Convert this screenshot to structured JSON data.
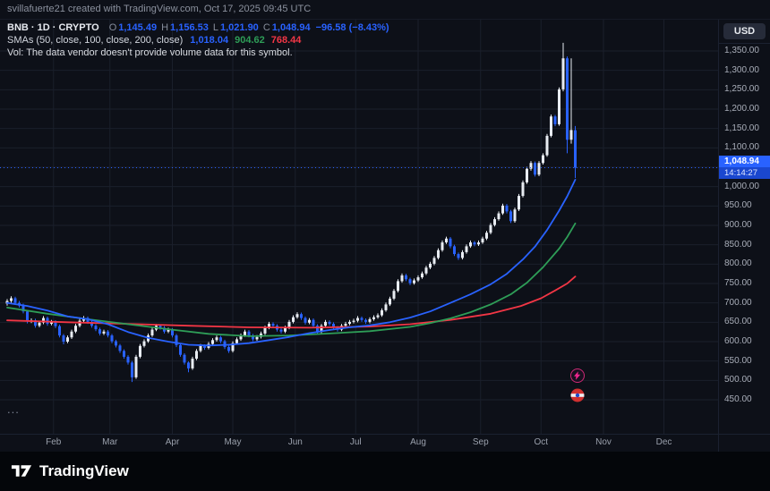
{
  "top_bar": {
    "attribution": "svillafuerte21 created with TradingView.com, Oct 17, 2025 09:45 UTC"
  },
  "toolbar": {
    "currency_button": "USD"
  },
  "legend": {
    "title": "BNB · 1D · CRYPTO",
    "ohlc": {
      "o_label": "O",
      "o": "1,145.49",
      "h_label": "H",
      "h": "1,156.53",
      "l_label": "L",
      "l": "1,021.90",
      "c_label": "C",
      "c": "1,048.94",
      "change": "−96.58 (−8.43%)"
    },
    "sma_title": "SMAs (50, close, 100, close, 200, close)",
    "sma50": "1,018.04",
    "sma100": "904.62",
    "sma200": "768.44",
    "vol_message": "Vol: The data vendor doesn't provide volume data for this symbol.",
    "pane_more": "..."
  },
  "price_scale": {
    "labels": [
      "1,350.00",
      "1,300.00",
      "1,250.00",
      "1,200.00",
      "1,150.00",
      "1,100.00",
      "1,050.00",
      "1,000.00",
      "950.00",
      "900.00",
      "850.00",
      "800.00",
      "750.00",
      "700.00",
      "650.00",
      "600.00",
      "550.00",
      "500.00",
      "450.00"
    ],
    "last_price": "1,048.94",
    "countdown": "14:14:27"
  },
  "time_scale": {
    "months": [
      {
        "label": "Feb",
        "day": 23
      },
      {
        "label": "Mar",
        "day": 51
      },
      {
        "label": "Apr",
        "day": 82
      },
      {
        "label": "May",
        "day": 112
      },
      {
        "label": "Jun",
        "day": 143
      },
      {
        "label": "Jul",
        "day": 173
      },
      {
        "label": "Aug",
        "day": 204
      },
      {
        "label": "Sep",
        "day": 235
      },
      {
        "label": "Oct",
        "day": 265
      },
      {
        "label": "Nov",
        "day": 296
      },
      {
        "label": "Dec",
        "day": 326
      }
    ]
  },
  "footer": {
    "brand": "TradingView"
  },
  "colors": {
    "accent": "#2962ff",
    "up": "#e8ecf2",
    "down": "#2962ff",
    "grid": "#1a1f2b",
    "badge": "#2962ff"
  },
  "chart_data": {
    "type": "candlestick",
    "symbol": "BNB",
    "interval": "1D",
    "market": "CRYPTO",
    "currency": "USD",
    "ylim": [
      450,
      1350
    ],
    "grid_step": 50,
    "legend_position": "top-left",
    "last": {
      "open": 1145.49,
      "high": 1156.53,
      "low": 1021.9,
      "close": 1048.94,
      "change": -96.58,
      "change_pct": -8.43
    },
    "candles": [
      [
        0,
        698,
        710,
        693,
        705
      ],
      [
        2,
        705,
        717,
        700,
        712
      ],
      [
        4,
        712,
        716,
        695,
        700
      ],
      [
        6,
        700,
        705,
        688,
        693
      ],
      [
        8,
        693,
        698,
        673,
        678
      ],
      [
        10,
        678,
        682,
        647,
        652
      ],
      [
        12,
        652,
        660,
        648,
        655
      ],
      [
        14,
        655,
        659,
        636,
        641
      ],
      [
        16,
        641,
        654,
        637,
        649
      ],
      [
        18,
        649,
        666,
        645,
        661
      ],
      [
        20,
        661,
        665,
        641,
        646
      ],
      [
        22,
        646,
        656,
        642,
        651
      ],
      [
        24,
        651,
        655,
        635,
        640
      ],
      [
        26,
        640,
        644,
        611,
        616
      ],
      [
        28,
        616,
        620,
        593,
        600
      ],
      [
        30,
        600,
        616,
        596,
        611
      ],
      [
        32,
        611,
        631,
        607,
        626
      ],
      [
        34,
        626,
        646,
        622,
        641
      ],
      [
        36,
        641,
        659,
        637,
        654
      ],
      [
        38,
        654,
        666,
        650,
        661
      ],
      [
        40,
        661,
        665,
        646,
        651
      ],
      [
        42,
        651,
        655,
        636,
        641
      ],
      [
        44,
        641,
        645,
        627,
        632
      ],
      [
        46,
        632,
        636,
        616,
        621
      ],
      [
        48,
        621,
        631,
        617,
        626
      ],
      [
        50,
        626,
        630,
        611,
        616
      ],
      [
        52,
        616,
        620,
        596,
        601
      ],
      [
        54,
        601,
        605,
        585,
        590
      ],
      [
        56,
        590,
        594,
        571,
        576
      ],
      [
        58,
        576,
        580,
        556,
        561
      ],
      [
        60,
        561,
        565,
        541,
        546
      ],
      [
        62,
        546,
        550,
        496,
        508
      ],
      [
        64,
        508,
        566,
        504,
        561
      ],
      [
        66,
        561,
        594,
        557,
        589
      ],
      [
        68,
        589,
        606,
        585,
        601
      ],
      [
        70,
        601,
        621,
        597,
        616
      ],
      [
        72,
        616,
        636,
        612,
        631
      ],
      [
        74,
        631,
        646,
        627,
        641
      ],
      [
        76,
        641,
        645,
        631,
        636
      ],
      [
        78,
        636,
        640,
        621,
        626
      ],
      [
        80,
        626,
        636,
        622,
        631
      ],
      [
        82,
        631,
        635,
        611,
        616
      ],
      [
        84,
        616,
        620,
        586,
        591
      ],
      [
        86,
        591,
        595,
        561,
        566
      ],
      [
        88,
        566,
        570,
        541,
        546
      ],
      [
        90,
        546,
        549,
        521,
        531
      ],
      [
        92,
        531,
        561,
        527,
        556
      ],
      [
        94,
        556,
        581,
        552,
        576
      ],
      [
        96,
        576,
        594,
        572,
        589
      ],
      [
        98,
        589,
        593,
        579,
        584
      ],
      [
        100,
        584,
        599,
        580,
        594
      ],
      [
        102,
        594,
        609,
        590,
        604
      ],
      [
        104,
        604,
        616,
        600,
        611
      ],
      [
        106,
        611,
        615,
        596,
        601
      ],
      [
        108,
        601,
        605,
        581,
        586
      ],
      [
        110,
        586,
        590,
        571,
        576
      ],
      [
        112,
        576,
        601,
        572,
        596
      ],
      [
        114,
        596,
        611,
        592,
        606
      ],
      [
        116,
        606,
        621,
        602,
        616
      ],
      [
        118,
        616,
        631,
        612,
        626
      ],
      [
        120,
        626,
        630,
        611,
        616
      ],
      [
        122,
        616,
        620,
        601,
        606
      ],
      [
        124,
        606,
        617,
        602,
        612
      ],
      [
        126,
        612,
        626,
        608,
        621
      ],
      [
        128,
        621,
        641,
        617,
        636
      ],
      [
        130,
        636,
        651,
        632,
        646
      ],
      [
        132,
        646,
        650,
        636,
        641
      ],
      [
        134,
        641,
        645,
        626,
        631
      ],
      [
        136,
        631,
        635,
        621,
        626
      ],
      [
        138,
        626,
        641,
        622,
        636
      ],
      [
        140,
        636,
        656,
        632,
        651
      ],
      [
        142,
        651,
        668,
        647,
        663
      ],
      [
        144,
        663,
        676,
        659,
        671
      ],
      [
        146,
        671,
        675,
        656,
        661
      ],
      [
        148,
        661,
        665,
        644,
        649
      ],
      [
        150,
        649,
        661,
        645,
        656
      ],
      [
        152,
        656,
        660,
        636,
        641
      ],
      [
        154,
        641,
        645,
        621,
        626
      ],
      [
        156,
        626,
        646,
        622,
        641
      ],
      [
        158,
        641,
        656,
        637,
        651
      ],
      [
        160,
        651,
        655,
        641,
        646
      ],
      [
        162,
        646,
        650,
        631,
        636
      ],
      [
        164,
        636,
        640,
        626,
        631
      ],
      [
        166,
        631,
        646,
        627,
        641
      ],
      [
        168,
        641,
        651,
        637,
        646
      ],
      [
        170,
        646,
        656,
        642,
        651
      ],
      [
        172,
        651,
        659,
        647,
        654
      ],
      [
        174,
        654,
        666,
        650,
        661
      ],
      [
        176,
        661,
        665,
        651,
        656
      ],
      [
        178,
        656,
        660,
        646,
        651
      ],
      [
        180,
        651,
        663,
        647,
        658
      ],
      [
        182,
        658,
        668,
        654,
        663
      ],
      [
        184,
        663,
        673,
        659,
        668
      ],
      [
        186,
        668,
        686,
        664,
        681
      ],
      [
        188,
        681,
        701,
        677,
        696
      ],
      [
        190,
        696,
        716,
        692,
        711
      ],
      [
        192,
        711,
        736,
        707,
        731
      ],
      [
        194,
        731,
        761,
        727,
        756
      ],
      [
        196,
        756,
        776,
        752,
        771
      ],
      [
        198,
        771,
        775,
        756,
        761
      ],
      [
        200,
        761,
        765,
        746,
        751
      ],
      [
        202,
        751,
        763,
        747,
        758
      ],
      [
        204,
        758,
        771,
        754,
        766
      ],
      [
        206,
        766,
        781,
        762,
        776
      ],
      [
        208,
        776,
        796,
        772,
        791
      ],
      [
        210,
        791,
        806,
        787,
        801
      ],
      [
        212,
        801,
        821,
        797,
        816
      ],
      [
        214,
        816,
        841,
        812,
        836
      ],
      [
        216,
        836,
        861,
        832,
        856
      ],
      [
        218,
        856,
        871,
        852,
        866
      ],
      [
        220,
        866,
        870,
        841,
        846
      ],
      [
        222,
        846,
        850,
        821,
        826
      ],
      [
        224,
        826,
        830,
        811,
        816
      ],
      [
        226,
        816,
        836,
        812,
        831
      ],
      [
        228,
        831,
        851,
        827,
        846
      ],
      [
        230,
        846,
        861,
        842,
        856
      ],
      [
        232,
        856,
        860,
        846,
        851
      ],
      [
        234,
        851,
        861,
        847,
        856
      ],
      [
        236,
        856,
        871,
        852,
        866
      ],
      [
        238,
        866,
        886,
        862,
        881
      ],
      [
        240,
        881,
        906,
        877,
        901
      ],
      [
        242,
        901,
        921,
        897,
        916
      ],
      [
        244,
        916,
        936,
        912,
        931
      ],
      [
        246,
        931,
        956,
        927,
        951
      ],
      [
        248,
        951,
        955,
        931,
        936
      ],
      [
        250,
        936,
        940,
        906,
        911
      ],
      [
        252,
        911,
        946,
        907,
        941
      ],
      [
        254,
        941,
        981,
        937,
        976
      ],
      [
        256,
        976,
        1016,
        972,
        1011
      ],
      [
        258,
        1011,
        1051,
        1007,
        1046
      ],
      [
        260,
        1046,
        1066,
        1041,
        1061
      ],
      [
        262,
        1061,
        1065,
        1026,
        1031
      ],
      [
        264,
        1031,
        1066,
        1027,
        1061
      ],
      [
        266,
        1061,
        1086,
        1057,
        1081
      ],
      [
        268,
        1081,
        1136,
        1077,
        1131
      ],
      [
        270,
        1131,
        1186,
        1127,
        1181
      ],
      [
        272,
        1181,
        1185,
        1156,
        1161
      ],
      [
        274,
        1161,
        1256,
        1157,
        1251
      ],
      [
        276,
        1251,
        1371,
        1246,
        1331
      ],
      [
        278,
        1331,
        1336,
        1086,
        1121
      ],
      [
        280,
        1121,
        1331,
        1111,
        1146
      ],
      [
        282,
        1145.49,
        1156.53,
        1021.9,
        1048.94
      ]
    ],
    "sma": [
      {
        "name": "SMA 50",
        "color": "#2962ff",
        "value": 1018.04,
        "points": [
          [
            0,
            700
          ],
          [
            10,
            692
          ],
          [
            20,
            680
          ],
          [
            30,
            665
          ],
          [
            40,
            658
          ],
          [
            50,
            645
          ],
          [
            60,
            625
          ],
          [
            70,
            610
          ],
          [
            80,
            600
          ],
          [
            90,
            592
          ],
          [
            100,
            590
          ],
          [
            110,
            592
          ],
          [
            120,
            596
          ],
          [
            130,
            604
          ],
          [
            140,
            612
          ],
          [
            150,
            622
          ],
          [
            160,
            630
          ],
          [
            170,
            637
          ],
          [
            180,
            642
          ],
          [
            190,
            650
          ],
          [
            200,
            662
          ],
          [
            210,
            678
          ],
          [
            220,
            700
          ],
          [
            230,
            722
          ],
          [
            240,
            748
          ],
          [
            248,
            775
          ],
          [
            256,
            812
          ],
          [
            262,
            845
          ],
          [
            268,
            888
          ],
          [
            274,
            938
          ],
          [
            278,
            975
          ],
          [
            282,
            1018
          ]
        ]
      },
      {
        "name": "SMA 100",
        "color": "#2e9d57",
        "value": 904.62,
        "points": [
          [
            0,
            688
          ],
          [
            20,
            672
          ],
          [
            40,
            658
          ],
          [
            60,
            645
          ],
          [
            80,
            632
          ],
          [
            100,
            620
          ],
          [
            120,
            614
          ],
          [
            140,
            616
          ],
          [
            160,
            621
          ],
          [
            180,
            627
          ],
          [
            200,
            638
          ],
          [
            210,
            648
          ],
          [
            220,
            660
          ],
          [
            230,
            676
          ],
          [
            240,
            696
          ],
          [
            250,
            722
          ],
          [
            258,
            752
          ],
          [
            266,
            792
          ],
          [
            274,
            840
          ],
          [
            278,
            870
          ],
          [
            282,
            905
          ]
        ]
      },
      {
        "name": "SMA 200",
        "color": "#f23645",
        "value": 768.44,
        "points": [
          [
            0,
            655
          ],
          [
            30,
            650
          ],
          [
            60,
            646
          ],
          [
            90,
            641
          ],
          [
            120,
            637
          ],
          [
            150,
            636
          ],
          [
            180,
            639
          ],
          [
            200,
            645
          ],
          [
            220,
            656
          ],
          [
            240,
            672
          ],
          [
            255,
            692
          ],
          [
            265,
            712
          ],
          [
            272,
            732
          ],
          [
            278,
            750
          ],
          [
            282,
            768
          ]
        ]
      }
    ]
  }
}
